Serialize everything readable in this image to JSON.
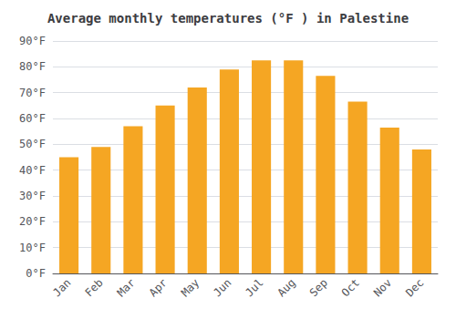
{
  "chart_data": {
    "type": "bar",
    "title": "Average monthly temperatures (°F ) in Palestine",
    "categories": [
      "Jan",
      "Feb",
      "Mar",
      "Apr",
      "May",
      "Jun",
      "Jul",
      "Aug",
      "Sep",
      "Oct",
      "Nov",
      "Dec"
    ],
    "values": [
      45,
      49,
      57,
      65,
      72,
      79,
      82.5,
      82.5,
      76.5,
      66.5,
      56.5,
      48
    ],
    "color": "#F5A623",
    "ylim": [
      0,
      90
    ],
    "yticks": [
      {
        "value": 0,
        "label": "0°F"
      },
      {
        "value": 10,
        "label": "10°F"
      },
      {
        "value": 20,
        "label": "20°F"
      },
      {
        "value": 30,
        "label": "30°F"
      },
      {
        "value": 40,
        "label": "40°F"
      },
      {
        "value": 50,
        "label": "50°F"
      },
      {
        "value": 60,
        "label": "60°F"
      },
      {
        "value": 70,
        "label": "70°F"
      },
      {
        "value": 80,
        "label": "80°F"
      },
      {
        "value": 90,
        "label": "90°F"
      }
    ],
    "grid": true
  }
}
